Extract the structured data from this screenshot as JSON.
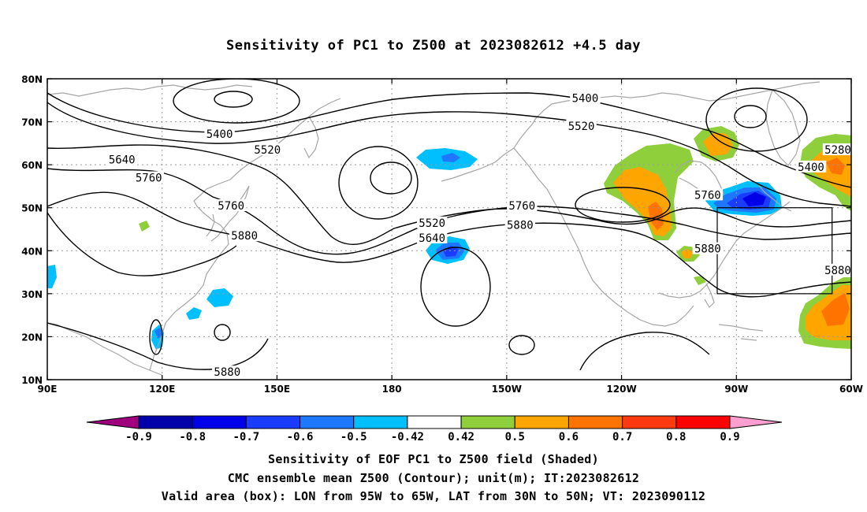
{
  "title": "Sensitivity of PC1 to Z500 at 2023082612 +4.5 day",
  "map": {
    "lat_range": [
      10,
      80
    ],
    "lon_range": [
      90,
      300
    ],
    "lat_labels": [
      "80N",
      "70N",
      "60N",
      "50N",
      "40N",
      "30N",
      "20N",
      "10N"
    ],
    "lon_labels": [
      "90E",
      "120E",
      "150E",
      "180",
      "150W",
      "120W",
      "90W",
      "60W"
    ],
    "contour_labels": [
      {
        "text": "5400",
        "lon": 135.0,
        "lat": 67.2
      },
      {
        "text": "5400",
        "lon": 230.5,
        "lat": 75.5
      },
      {
        "text": "5400",
        "lon": 289.5,
        "lat": 59.5
      },
      {
        "text": "5520",
        "lon": 147.5,
        "lat": 63.5
      },
      {
        "text": "5520",
        "lon": 229.5,
        "lat": 69.0
      },
      {
        "text": "5520",
        "lon": 190.5,
        "lat": 46.5
      },
      {
        "text": "5640",
        "lon": 109.5,
        "lat": 61.2
      },
      {
        "text": "5640",
        "lon": 190.5,
        "lat": 43.0
      },
      {
        "text": "5760",
        "lon": 116.5,
        "lat": 57.0
      },
      {
        "text": "5760",
        "lon": 138.0,
        "lat": 50.5
      },
      {
        "text": "5760",
        "lon": 214.0,
        "lat": 50.5
      },
      {
        "text": "5760",
        "lon": 262.5,
        "lat": 53.0
      },
      {
        "text": "5880",
        "lon": 141.5,
        "lat": 43.5
      },
      {
        "text": "5880",
        "lon": 213.5,
        "lat": 46.0
      },
      {
        "text": "5880",
        "lon": 262.5,
        "lat": 40.5
      },
      {
        "text": "5880",
        "lon": 296.5,
        "lat": 35.5
      },
      {
        "text": "5880",
        "lon": 137.0,
        "lat": 11.8
      },
      {
        "text": "5280",
        "lon": 296.5,
        "lat": 63.5
      }
    ],
    "valid_box": {
      "lon_min": 265,
      "lon_max": 295,
      "lat_min": 30,
      "lat_max": 50
    }
  },
  "colorbar": {
    "levels": [
      "-0.9",
      "-0.8",
      "-0.7",
      "-0.6",
      "-0.5",
      "-0.42",
      "0.42",
      "0.5",
      "0.6",
      "0.7",
      "0.8",
      "0.9"
    ],
    "colors": [
      "#a0007e",
      "#0000aa",
      "#0000e8",
      "#1a3cff",
      "#1e78ff",
      "#00bfff",
      "#ffffff",
      "#8fcf3c",
      "#ffa500",
      "#ff7400",
      "#ff3a10",
      "#ff0000",
      "#ff9fcf"
    ]
  },
  "captions": {
    "line1": "Sensitivity of EOF PC1 to Z500 field (Shaded)",
    "line2": "CMC ensemble mean Z500 (Contour); unit(m); IT:2023082612",
    "line3": "Valid area (box): LON from 95W to 65W, LAT from 30N to 50N; VT: 2023090112"
  }
}
